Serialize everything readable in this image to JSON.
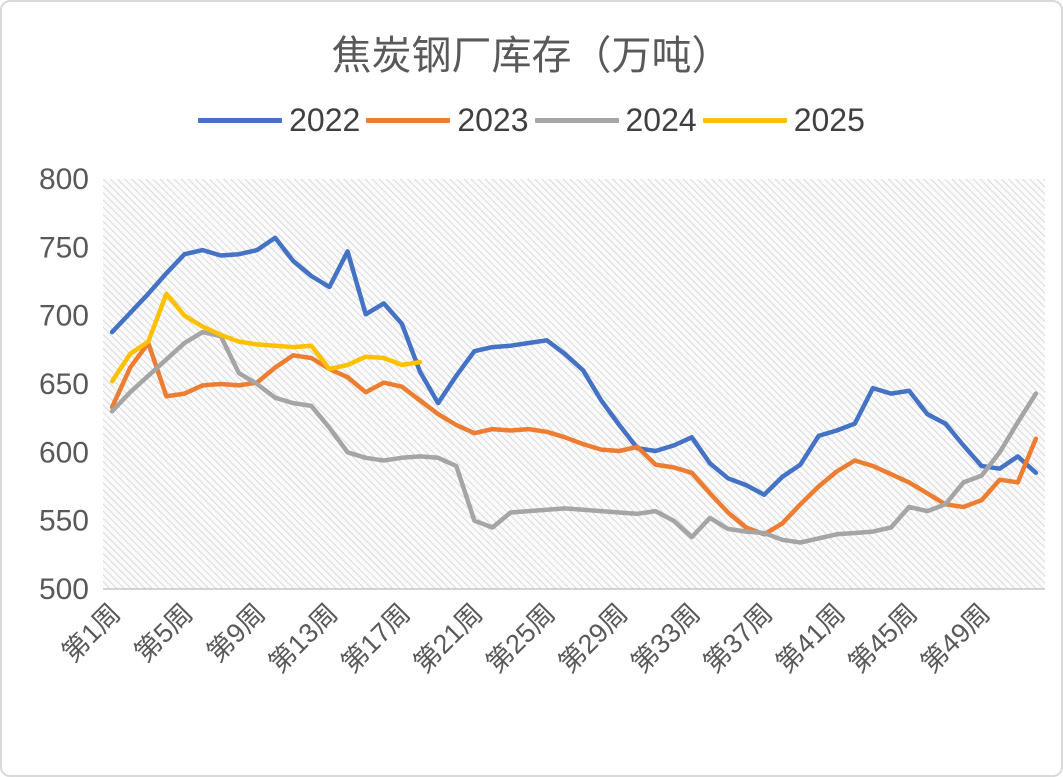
{
  "chart_data": {
    "type": "line",
    "title": "焦炭钢厂库存（万吨）",
    "xlabel": "",
    "ylabel": "",
    "ylim": [
      500,
      800
    ],
    "y_ticks": [
      800,
      750,
      700,
      650,
      600,
      550,
      500
    ],
    "weeks": 52,
    "x_tick_weeks": [
      1,
      5,
      9,
      13,
      17,
      21,
      25,
      29,
      33,
      37,
      41,
      45,
      49
    ],
    "x_tick_labels": [
      "第1周",
      "第5周",
      "第9周",
      "第13周",
      "第17周",
      "第21周",
      "第25周",
      "第29周",
      "第33周",
      "第37周",
      "第41周",
      "第45周",
      "第49周"
    ],
    "legend_position": "top",
    "grid": false,
    "plot_background": "diagonal-hatch-light-gray",
    "axis_label_color": "#595959",
    "series": [
      {
        "name": "2022",
        "color": "#4472C4",
        "values": [
          688,
          702,
          716,
          731,
          745,
          748,
          744,
          745,
          748,
          757,
          740,
          729,
          721,
          747,
          701,
          709,
          694,
          659,
          636,
          656,
          674,
          677,
          678,
          680,
          682,
          672,
          660,
          638,
          620,
          603,
          601,
          605,
          611,
          592,
          581,
          576,
          569,
          582,
          591,
          612,
          616,
          621,
          647,
          643,
          645,
          628,
          621,
          605,
          590,
          588,
          597,
          585
        ]
      },
      {
        "name": "2023",
        "color": "#ED7D31",
        "values": [
          633,
          662,
          680,
          641,
          643,
          649,
          650,
          649,
          651,
          662,
          671,
          669,
          661,
          655,
          644,
          651,
          648,
          638,
          628,
          620,
          614,
          617,
          616,
          617,
          615,
          611,
          606,
          602,
          601,
          604,
          591,
          589,
          585,
          570,
          556,
          545,
          540,
          548,
          562,
          575,
          586,
          594,
          590,
          584,
          578,
          570,
          562,
          560,
          565,
          580,
          578,
          610
        ]
      },
      {
        "name": "2024",
        "color": "#A5A5A5",
        "values": [
          630,
          644,
          656,
          668,
          680,
          688,
          685,
          658,
          650,
          640,
          636,
          634,
          618,
          600,
          596,
          594,
          596,
          597,
          596,
          590,
          550,
          545,
          556,
          557,
          558,
          559,
          558,
          557,
          556,
          555,
          557,
          550,
          538,
          552,
          544,
          542,
          541,
          536,
          534,
          537,
          540,
          541,
          542,
          545,
          560,
          557,
          562,
          578,
          583,
          600,
          622,
          643
        ]
      },
      {
        "name": "2025",
        "color": "#FFC000",
        "values": [
          652,
          672,
          681,
          716,
          700,
          692,
          686,
          681,
          679,
          678,
          677,
          678,
          661,
          664,
          670,
          669,
          664,
          666
        ]
      }
    ]
  }
}
